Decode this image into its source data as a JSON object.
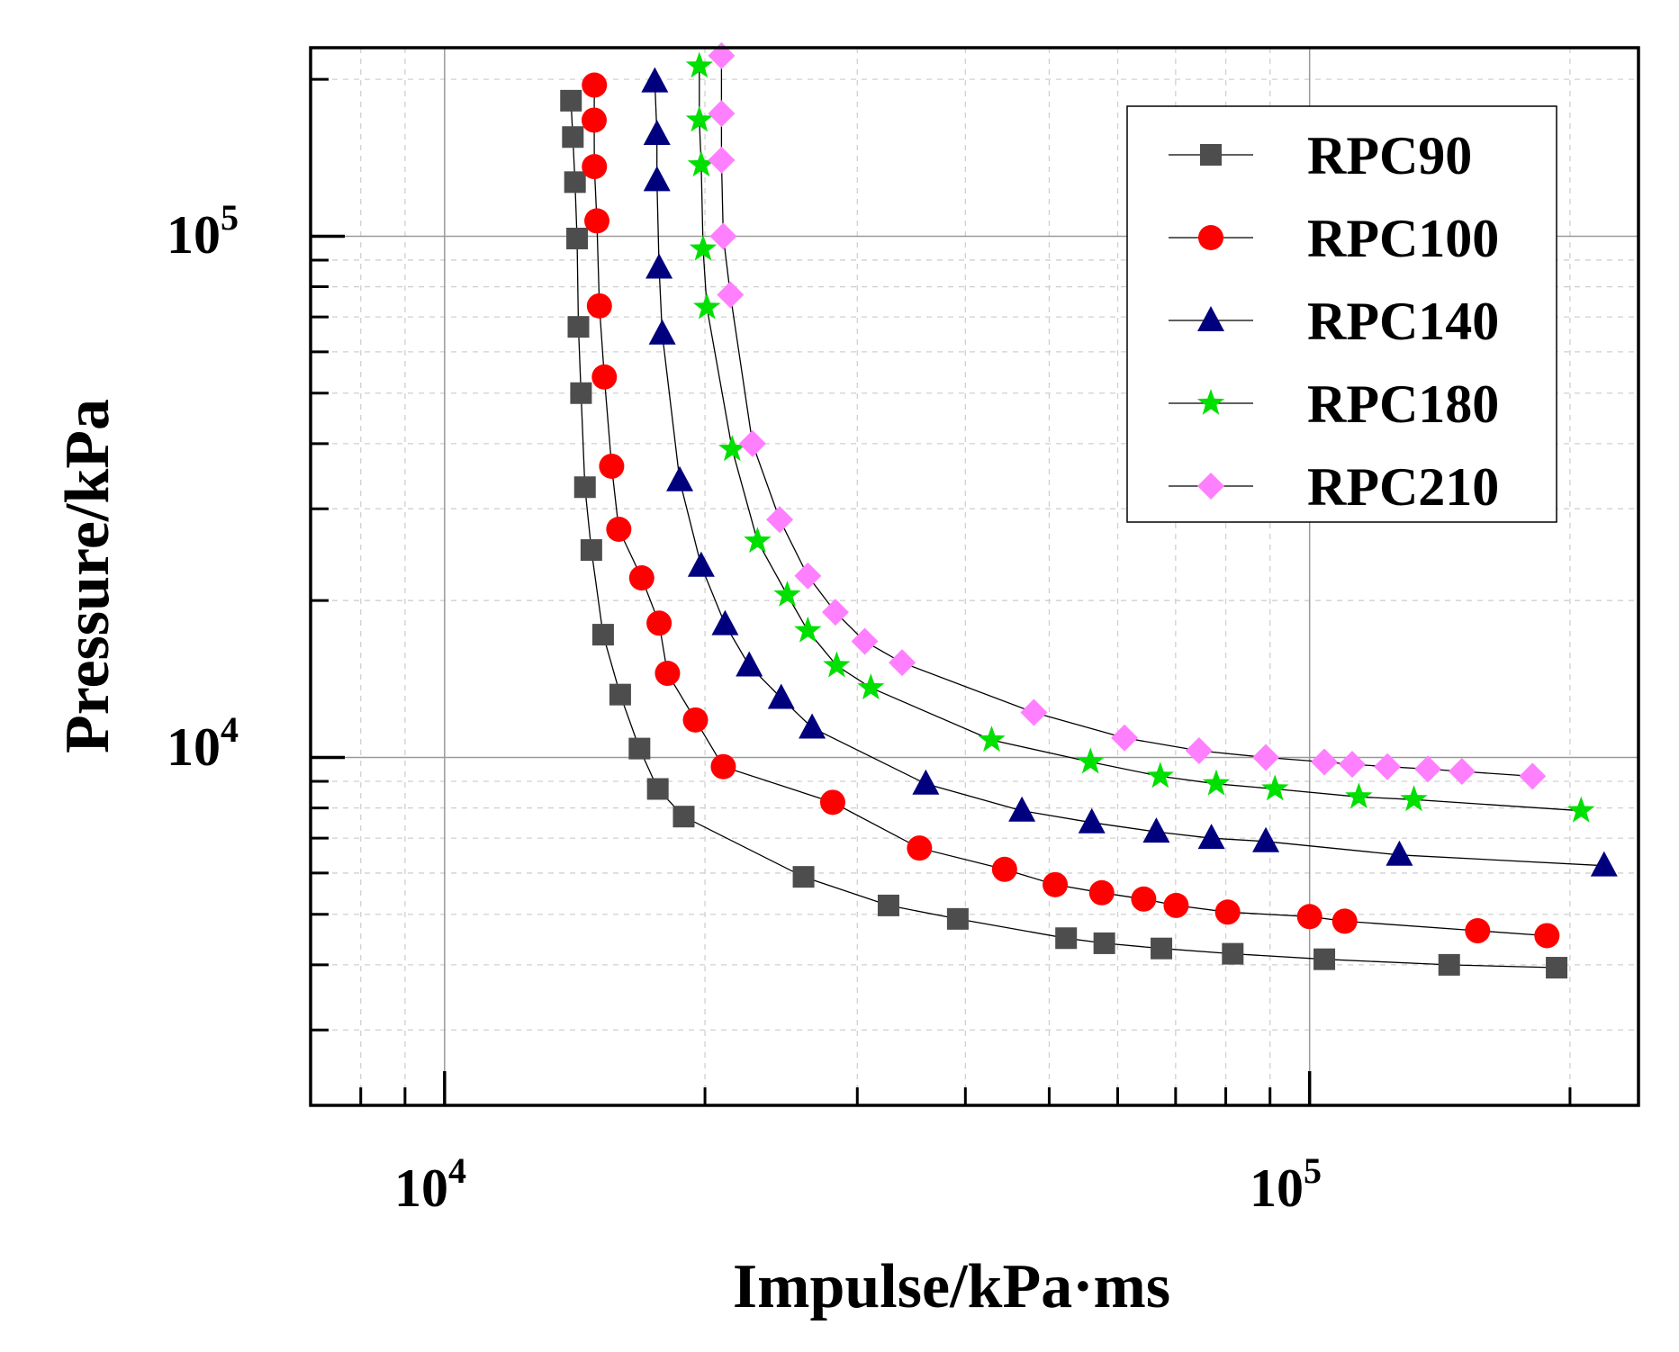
{
  "chart_data": {
    "type": "scatter",
    "xscale": "log",
    "yscale": "log",
    "xlabel": "Impulse/kPa·ms",
    "ylabel": "Pressure/kPa",
    "xlim": [
      7000,
      240000
    ],
    "ylim": [
      2150,
      230000
    ],
    "x_ticks": [
      {
        "value": 10000,
        "base": "10",
        "exp": "4"
      },
      {
        "value": 100000,
        "base": "10",
        "exp": "5"
      }
    ],
    "y_ticks": [
      {
        "value": 10000,
        "base": "10",
        "exp": "4"
      },
      {
        "value": 100000,
        "base": "10",
        "exp": "5"
      }
    ],
    "grid": true,
    "legend_position": "top-right",
    "series": [
      {
        "name": "RPC90",
        "marker": "square",
        "color": "#4d4d4d",
        "x": [
          14000,
          14070,
          14150,
          14230,
          14280,
          14380,
          14530,
          14780,
          15250,
          15960,
          16800,
          17640,
          18900,
          26000,
          32600,
          39200,
          52300,
          57900,
          67400,
          81500,
          104000,
          145000,
          193000
        ],
        "y": [
          182000,
          155000,
          127000,
          99000,
          67000,
          50000,
          33000,
          25000,
          17200,
          13200,
          10400,
          8700,
          7700,
          5900,
          5200,
          4900,
          4500,
          4400,
          4300,
          4200,
          4100,
          4000,
          3950
        ]
      },
      {
        "name": "RPC100",
        "marker": "circle",
        "color": "#ff0000",
        "x": [
          14900,
          14890,
          14900,
          15000,
          15100,
          15300,
          15600,
          15900,
          16900,
          17700,
          18100,
          19500,
          21000,
          28100,
          35400,
          44400,
          50800,
          57500,
          64300,
          70100,
          80400,
          100000,
          109800,
          156400,
          188100
        ],
        "y": [
          195000,
          167000,
          136000,
          107000,
          73500,
          53700,
          36200,
          27400,
          22100,
          18100,
          14500,
          11800,
          9600,
          8200,
          6700,
          6100,
          5700,
          5500,
          5350,
          5200,
          5050,
          4950,
          4850,
          4650,
          4550
        ]
      },
      {
        "name": "RPC140",
        "marker": "triangle",
        "color": "#00007f",
        "x": [
          17500,
          17600,
          17600,
          17700,
          17850,
          18700,
          19800,
          21100,
          22500,
          24500,
          26600,
          36000,
          46500,
          56000,
          66500,
          77000,
          89000,
          127000,
          219000
        ],
        "y": [
          198000,
          157000,
          128000,
          87000,
          65000,
          34000,
          23300,
          18000,
          15000,
          13000,
          11400,
          8900,
          7900,
          7500,
          7200,
          7000,
          6900,
          6500,
          6200
        ]
      },
      {
        "name": "RPC180",
        "marker": "star",
        "color": "#00e000",
        "x": [
          19700,
          19700,
          19800,
          19900,
          20100,
          21500,
          23000,
          24900,
          26300,
          28400,
          31100,
          42900,
          55800,
          67200,
          78000,
          91200,
          114000,
          132000,
          206000
        ],
        "y": [
          212000,
          167000,
          137000,
          94500,
          73000,
          39000,
          26000,
          20500,
          17500,
          15000,
          13600,
          10800,
          9800,
          9200,
          8900,
          8700,
          8400,
          8300,
          7900
        ]
      },
      {
        "name": "RPC210",
        "marker": "diamond",
        "color": "#ff80ff",
        "x": [
          20900,
          20900,
          20900,
          21000,
          21400,
          22700,
          24400,
          26300,
          28300,
          30600,
          33800,
          48000,
          61100,
          74500,
          89000,
          104000,
          112000,
          123000,
          137000,
          150000,
          181000
        ],
        "y": [
          222000,
          172000,
          140000,
          100000,
          77200,
          40000,
          28600,
          22300,
          19000,
          16700,
          15200,
          12200,
          10900,
          10300,
          10000,
          9800,
          9700,
          9600,
          9500,
          9400,
          9200
        ]
      }
    ]
  }
}
